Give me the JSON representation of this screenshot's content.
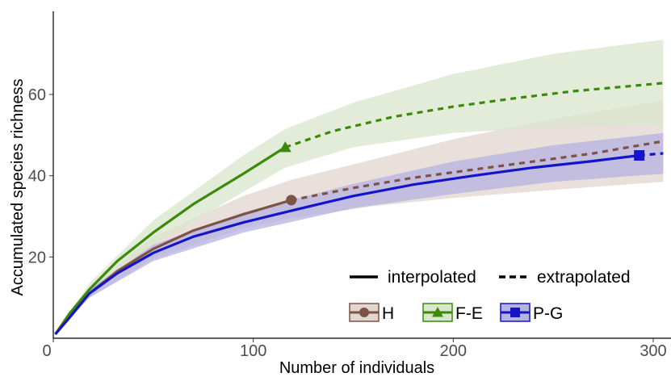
{
  "chart_data": {
    "type": "line",
    "title": "",
    "xlabel": "Number of individuals",
    "ylabel": "Accumulated species richness",
    "xlim": [
      0,
      310
    ],
    "ylim": [
      0,
      80
    ],
    "x_ticks": [
      0,
      100,
      200,
      300
    ],
    "y_ticks": [
      20,
      40,
      60
    ],
    "grid": false,
    "legend_position": "bottom-right",
    "line_types": [
      {
        "label": "interpolated",
        "style": "solid"
      },
      {
        "label": "extrapolated",
        "style": "dashed"
      }
    ],
    "series": [
      {
        "name": "H",
        "color": "#7d5346",
        "fill": "#e2d6d0",
        "marker": "circle",
        "observed": {
          "x": 119,
          "y": 34
        },
        "interpolated": [
          [
            1,
            1
          ],
          [
            8,
            5.5
          ],
          [
            18,
            11
          ],
          [
            32,
            16.5
          ],
          [
            50,
            22
          ],
          [
            70,
            26.5
          ],
          [
            95,
            30.5
          ],
          [
            119,
            34
          ]
        ],
        "extrapolated": [
          [
            119,
            34
          ],
          [
            150,
            37
          ],
          [
            180,
            39.5
          ],
          [
            210,
            41.5
          ],
          [
            240,
            43.5
          ],
          [
            270,
            45.5
          ],
          [
            305,
            48.5
          ]
        ],
        "ci_upper": [
          [
            1,
            1
          ],
          [
            18,
            12.5
          ],
          [
            50,
            25
          ],
          [
            95,
            35
          ],
          [
            119,
            39
          ],
          [
            160,
            44
          ],
          [
            200,
            49
          ],
          [
            250,
            54
          ],
          [
            305,
            58.5
          ]
        ],
        "ci_lower": [
          [
            1,
            1
          ],
          [
            18,
            10
          ],
          [
            50,
            19.5
          ],
          [
            95,
            27
          ],
          [
            119,
            29.5
          ],
          [
            160,
            32.5
          ],
          [
            200,
            34.5
          ],
          [
            250,
            36.5
          ],
          [
            305,
            38.5
          ]
        ]
      },
      {
        "name": "F-E",
        "color": "#3c8a0a",
        "fill": "#d8e6cc",
        "marker": "triangle",
        "observed": {
          "x": 116,
          "y": 47
        },
        "interpolated": [
          [
            1,
            1
          ],
          [
            8,
            6
          ],
          [
            18,
            12
          ],
          [
            32,
            19
          ],
          [
            50,
            26
          ],
          [
            70,
            33
          ],
          [
            95,
            40.5
          ],
          [
            116,
            47
          ]
        ],
        "extrapolated": [
          [
            116,
            47
          ],
          [
            140,
            51
          ],
          [
            170,
            54.5
          ],
          [
            200,
            57
          ],
          [
            230,
            59
          ],
          [
            260,
            60.8
          ],
          [
            305,
            62.8
          ]
        ],
        "ci_upper": [
          [
            1,
            1
          ],
          [
            18,
            13.5
          ],
          [
            50,
            29
          ],
          [
            95,
            45
          ],
          [
            116,
            51.5
          ],
          [
            150,
            58
          ],
          [
            200,
            65
          ],
          [
            250,
            70
          ],
          [
            305,
            73.5
          ]
        ],
        "ci_lower": [
          [
            1,
            1
          ],
          [
            18,
            10.5
          ],
          [
            50,
            23
          ],
          [
            95,
            36
          ],
          [
            116,
            42
          ],
          [
            150,
            47
          ],
          [
            200,
            50.5
          ],
          [
            250,
            52
          ],
          [
            305,
            52.5
          ]
        ]
      },
      {
        "name": "P-G",
        "color": "#1414c8",
        "fill": "#b5b3e1",
        "marker": "square",
        "observed": {
          "x": 293,
          "y": 45
        },
        "interpolated": [
          [
            1,
            1
          ],
          [
            8,
            5
          ],
          [
            18,
            11
          ],
          [
            32,
            16
          ],
          [
            50,
            21
          ],
          [
            70,
            25
          ],
          [
            95,
            28.5
          ],
          [
            120,
            31.5
          ],
          [
            150,
            35
          ],
          [
            180,
            37.8
          ],
          [
            210,
            40
          ],
          [
            240,
            42
          ],
          [
            270,
            43.6
          ],
          [
            293,
            45
          ]
        ],
        "extrapolated": [
          [
            293,
            45
          ],
          [
            300,
            45.3
          ],
          [
            305,
            45.5
          ]
        ],
        "ci_upper": [
          [
            1,
            1
          ],
          [
            18,
            12
          ],
          [
            50,
            23
          ],
          [
            95,
            31
          ],
          [
            150,
            38
          ],
          [
            200,
            43.5
          ],
          [
            250,
            47.5
          ],
          [
            305,
            50.5
          ]
        ],
        "ci_lower": [
          [
            1,
            1
          ],
          [
            18,
            10
          ],
          [
            50,
            19
          ],
          [
            95,
            26
          ],
          [
            150,
            32
          ],
          [
            200,
            35.5
          ],
          [
            250,
            38.5
          ],
          [
            305,
            40.5
          ]
        ]
      }
    ]
  }
}
